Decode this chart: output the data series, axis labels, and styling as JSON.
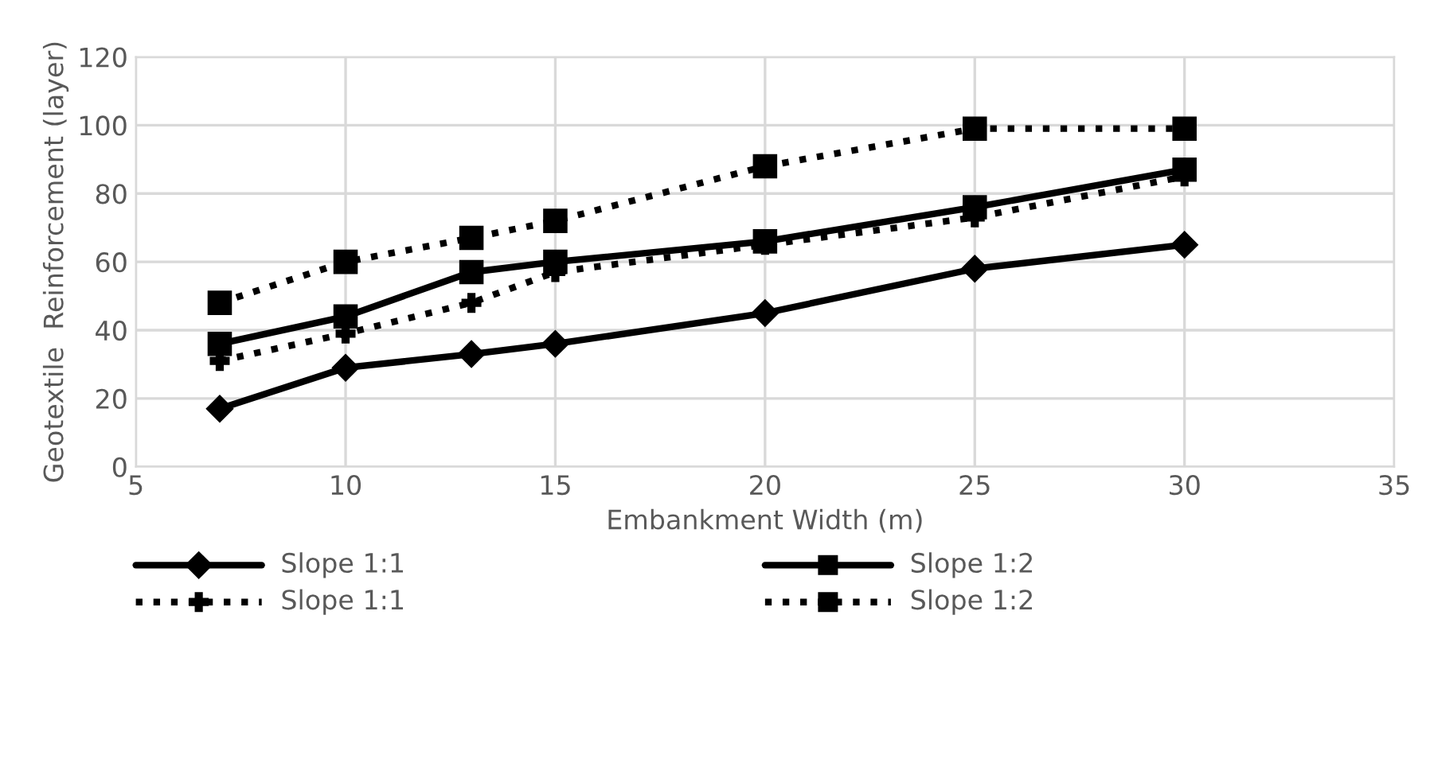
{
  "chart_data": {
    "type": "line",
    "xlabel": "Embankment Width (m)",
    "ylabel": "Geotextile  Reinforcement (layer)",
    "x": [
      7,
      10,
      13,
      15,
      20,
      25,
      30
    ],
    "series": [
      {
        "name": "Slope 1:1",
        "color": "#000000",
        "marker": "diamond",
        "line_style": "solid",
        "values": [
          17,
          29,
          33,
          36,
          45,
          58,
          65
        ]
      },
      {
        "name": "Slope 1:2",
        "color": "#000000",
        "marker": "square",
        "line_style": "solid",
        "values": [
          36,
          44,
          57,
          60,
          66,
          76,
          87
        ]
      },
      {
        "name": "Slope 1:1",
        "color": "#000000",
        "marker": "cross",
        "line_style": "dotted",
        "values": [
          31,
          39,
          48,
          57,
          65,
          73,
          85
        ]
      },
      {
        "name": "Slope 1:2",
        "color": "#000000",
        "marker": "square",
        "line_style": "dotted",
        "values": [
          48,
          60,
          67,
          72,
          88,
          99,
          99
        ]
      }
    ],
    "xlim": [
      5,
      35
    ],
    "xticks": [
      5,
      10,
      15,
      20,
      25,
      30,
      35
    ],
    "ylim": [
      0,
      120
    ],
    "yticks": [
      0,
      20,
      40,
      60,
      80,
      100,
      120
    ],
    "grid": true,
    "legend": "bottom"
  }
}
